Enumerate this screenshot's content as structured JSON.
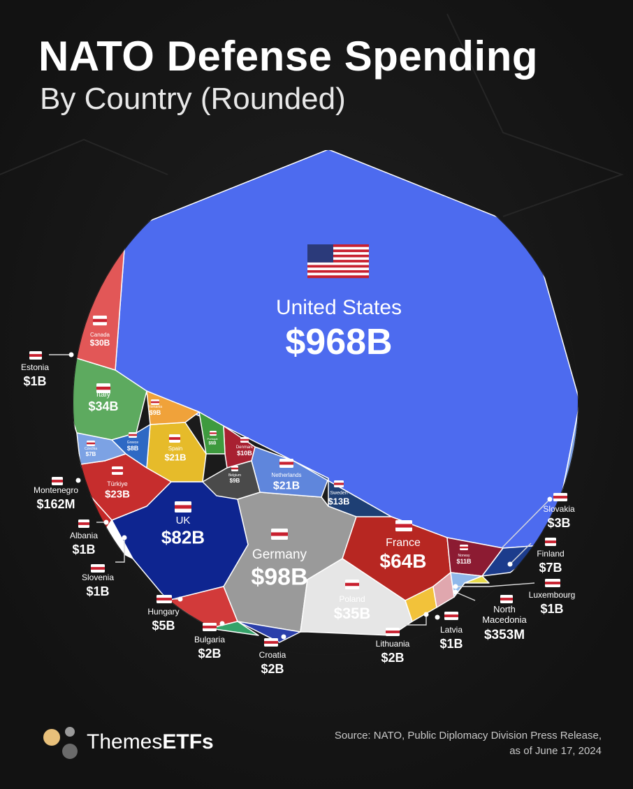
{
  "header": {
    "title": "NATO Defense Spending",
    "subtitle": "By Country (Rounded)"
  },
  "footer": {
    "brand_light": "Themes",
    "brand_bold": "ETFs",
    "source_line1": "Source: NATO, Public Diplomacy Division Press Release,",
    "source_line2": "as of June 17, 2024"
  },
  "chart_data": {
    "type": "voronoi-treemap",
    "title": "NATO Defense Spending",
    "subtitle": "By Country (Rounded)",
    "unit": "USD",
    "values": [
      {
        "country": "United States",
        "value": "$968B",
        "amount_billion": 968,
        "color": "#4D6BEF"
      },
      {
        "country": "Germany",
        "value": "$98B",
        "amount_billion": 98,
        "color": "#9A9A9A"
      },
      {
        "country": "UK",
        "value": "$82B",
        "amount_billion": 82,
        "color": "#0E2590"
      },
      {
        "country": "France",
        "value": "$64B",
        "amount_billion": 64,
        "color": "#B72722"
      },
      {
        "country": "Poland",
        "value": "$35B",
        "amount_billion": 35,
        "color": "#E6E6E6"
      },
      {
        "country": "Italy",
        "value": "$34B",
        "amount_billion": 34,
        "color": "#5DAA5F"
      },
      {
        "country": "Canada",
        "value": "$30B",
        "amount_billion": 30,
        "color": "#E25757"
      },
      {
        "country": "Türkiye",
        "value": "$23B",
        "amount_billion": 23,
        "color": "#C62D2D"
      },
      {
        "country": "Spain",
        "value": "$21B",
        "amount_billion": 21,
        "color": "#E6BB2A"
      },
      {
        "country": "Netherlands",
        "value": "$21B",
        "amount_billion": 21,
        "color": "#5F86DC"
      },
      {
        "country": "Sweden",
        "value": "$13B",
        "amount_billion": 13,
        "color": "#1E3F74"
      },
      {
        "country": "Norway",
        "value": "$11B",
        "amount_billion": 11,
        "color": "#8C1B32"
      },
      {
        "country": "Denmark",
        "value": "$10B",
        "amount_billion": 10,
        "color": "#A82031"
      },
      {
        "country": "Romania",
        "value": "$9B",
        "amount_billion": 9,
        "color": "#F0A23A"
      },
      {
        "country": "Belgium",
        "value": "$9B",
        "amount_billion": 9,
        "color": "#4A4A4A"
      },
      {
        "country": "Greece",
        "value": "$8B",
        "amount_billion": 8,
        "color": "#2E69C4"
      },
      {
        "country": "Czechia",
        "value": "$7B",
        "amount_billion": 7,
        "color": "#7CA2E4"
      },
      {
        "country": "Finland",
        "value": "$7B",
        "amount_billion": 7,
        "color": "#1C3C8C"
      },
      {
        "country": "Portugal",
        "value": "$5B",
        "amount_billion": 5,
        "color": "#3E9A3E"
      },
      {
        "country": "Hungary",
        "value": "$5B",
        "amount_billion": 5,
        "color": "#D23A3A"
      },
      {
        "country": "Slovakia",
        "value": "$3B",
        "amount_billion": 3,
        "color": "#7FA3E6"
      },
      {
        "country": "Bulgaria",
        "value": "$2B",
        "amount_billion": 2,
        "color": "#36A36A"
      },
      {
        "country": "Croatia",
        "value": "$2B",
        "amount_billion": 2,
        "color": "#2B3FAA"
      },
      {
        "country": "Lithuania",
        "value": "$2B",
        "amount_billion": 2,
        "color": "#F2C23A"
      },
      {
        "country": "Estonia",
        "value": "$1B",
        "amount_billion": 1,
        "color": "#5C86D6"
      },
      {
        "country": "Albania",
        "value": "$1B",
        "amount_billion": 1,
        "color": "#C42828"
      },
      {
        "country": "Slovenia",
        "value": "$1B",
        "amount_billion": 1,
        "color": "#FFFFFF"
      },
      {
        "country": "Latvia",
        "value": "$1B",
        "amount_billion": 1,
        "color": "#E0A7AE"
      },
      {
        "country": "Luxembourg",
        "value": "$1B",
        "amount_billion": 1,
        "color": "#8FB8EA"
      },
      {
        "country": "North Macedonia",
        "value": "$353M",
        "amount_billion": 0.353,
        "color": "#E8DB4A"
      },
      {
        "country": "Montenegro",
        "value": "$162M",
        "amount_billion": 0.162,
        "color": "#C23A2A"
      }
    ],
    "unlabeled_small_cells": [
      {
        "country": "Romania",
        "label_shown": "Romania",
        "value": "$9B"
      },
      {
        "country": "Portugal",
        "value": "$5B"
      }
    ]
  }
}
